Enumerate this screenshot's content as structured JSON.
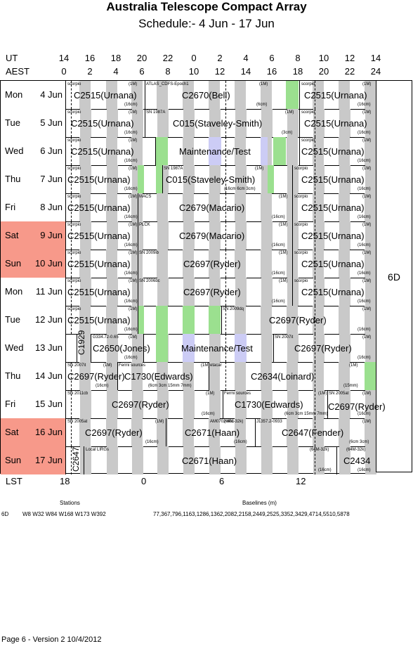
{
  "title": "Australia Telescope Compact Array",
  "subtitle": "Schedule:- 4  Jun - 17 Jun",
  "axes": {
    "ut_label": "UT",
    "aest_label": "AEST",
    "lst_label": "LST",
    "ut_ticks": [
      "14",
      "16",
      "18",
      "20",
      "22",
      "0",
      "2",
      "4",
      "6",
      "8",
      "10",
      "12",
      "14"
    ],
    "aest_ticks": [
      "0",
      "2",
      "4",
      "6",
      "8",
      "10",
      "12",
      "14",
      "16",
      "18",
      "20",
      "22",
      "24"
    ],
    "lst_ticks": [
      "18",
      "0",
      "6",
      "12"
    ]
  },
  "config": "6D",
  "days": [
    {
      "day": "Mon",
      "date": "4  Jun",
      "weekend": false
    },
    {
      "day": "Tue",
      "date": "5  Jun",
      "weekend": false
    },
    {
      "day": "Wed",
      "date": "6  Jun",
      "weekend": false
    },
    {
      "day": "Thu",
      "date": "7  Jun",
      "weekend": false
    },
    {
      "day": "Fri",
      "date": "8  Jun",
      "weekend": false
    },
    {
      "day": "Sat",
      "date": "9  Jun",
      "weekend": true
    },
    {
      "day": "Sun",
      "date": "10 Jun",
      "weekend": true
    },
    {
      "day": "Mon",
      "date": "11 Jun",
      "weekend": false
    },
    {
      "day": "Tue",
      "date": "12 Jun",
      "weekend": false
    },
    {
      "day": "Wed",
      "date": "13 Jun",
      "weekend": false
    },
    {
      "day": "Thu",
      "date": "14 Jun",
      "weekend": false
    },
    {
      "day": "Fri",
      "date": "15 Jun",
      "weekend": false
    },
    {
      "day": "Sat",
      "date": "16 Jun",
      "weekend": true
    },
    {
      "day": "Sun",
      "date": "17 Jun",
      "weekend": true
    }
  ],
  "colors": {
    "weekend": "#f7998a",
    "band": "#c9c9c9",
    "green": "#9be08f",
    "lavender": "#ccccf5"
  },
  "footer": {
    "stations_heading": "Stations",
    "baselines_heading": "Baselines (m)",
    "config": "6D",
    "stations": "W8 W32 W84 W168 W173 W392",
    "baselines": "77,367,796,1163,1286,1362,2082,2158,2449,2525,3352,3429,4714,5510,5878",
    "page": "Page 6 - Version 2  10/4/2012"
  },
  "labels": {
    "scorpio": "scorpio",
    "1m": "(1M)",
    "16cm": "(16cm)",
    "6cm": "(6cm)",
    "3cm": "(3cm)",
    "15mm": "(15mm)",
    "mixed1": "(16cm 6cm 3cm)",
    "mixed2": "(6cm 3cm 15mm 7mm)",
    "6cm3cm": "(6cm 3cm)",
    "64m32k": "(64M-32k)",
    "C2515": "C2515(Urnana)",
    "C2670": "C2670(Bell)",
    "C015": "C015(Staveley-Smith)",
    "maint": "Maintenance/Test",
    "C2679": "C2679(Macario)",
    "C2697": "C2697(Ryder)",
    "C1929": "C1929",
    "C2650": "C2650(Jones)",
    "C1730": "C1730(Edwards)",
    "C2634": "C2634(Loinard)",
    "C2671": "C2671(Haan)",
    "C2647f": "C2647(Fender)",
    "C2647": "C2647",
    "C2434": "C2434",
    "atlas": "ATLAS_CDFS-Epoch1",
    "sn1987a": "SN 1987A",
    "macs": "MACS",
    "plck": "PLCK",
    "sn2009ib": "SN 2009ib",
    "sn2006bc": "SN 2006bc",
    "sn2009dq": "SN 2009dq",
    "g334": "G334.72-0.65",
    "sn2007it": "SN 2007it",
    "fermi": "Fermi sources",
    "etacar": "etacar",
    "sn2011cb": "SN 2011cb",
    "sn2005at": "SN 2005at",
    "am0702": "AM0702-601",
    "j1357": "J1357.2-0933",
    "lirgs": "Local LIRGs"
  }
}
